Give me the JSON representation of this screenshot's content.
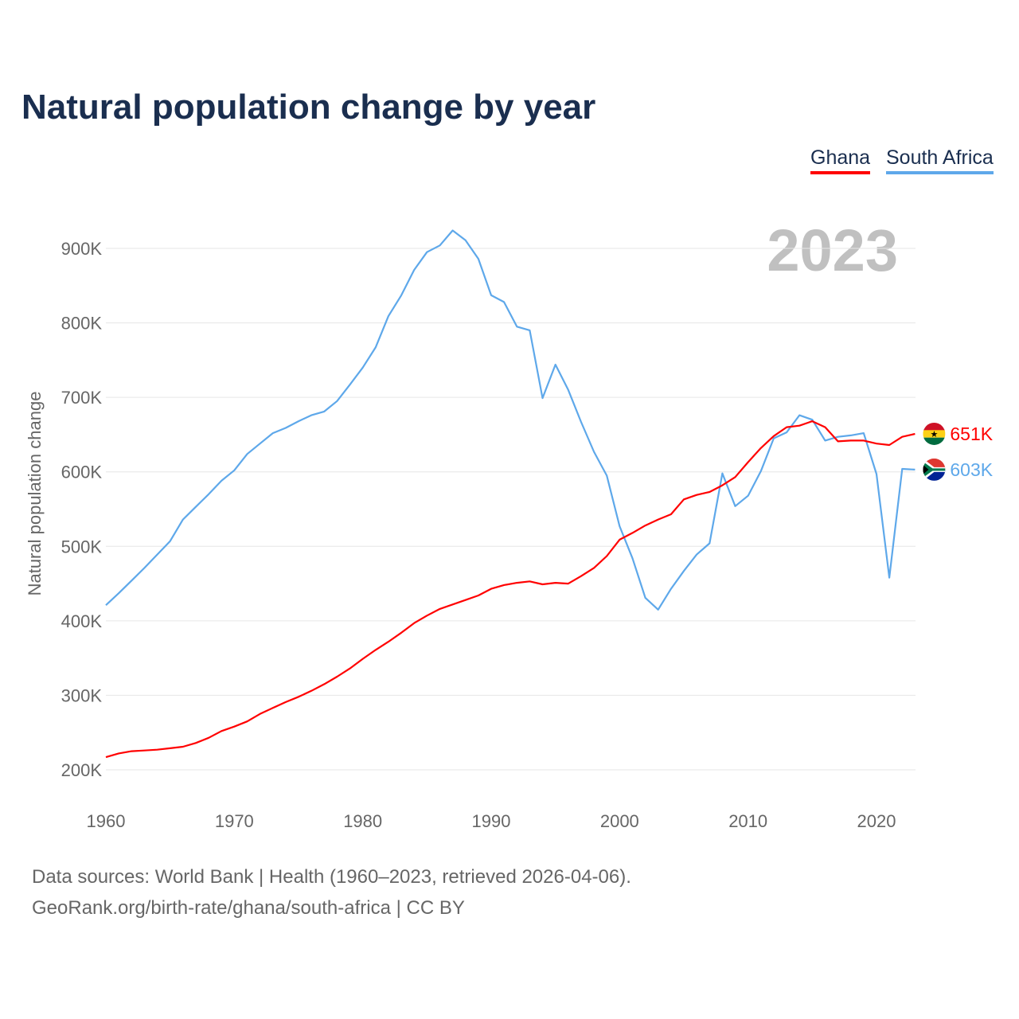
{
  "chart_data": {
    "type": "line",
    "title": "Natural population change by year",
    "ylabel": "Natural population change",
    "xlabel": "",
    "year_label": "2023",
    "xlim": [
      1960,
      2023
    ],
    "ylim": [
      200000,
      900000
    ],
    "x_ticks": [
      "1960",
      "1970",
      "1980",
      "1990",
      "2000",
      "2010",
      "2020"
    ],
    "y_ticks": [
      {
        "v": 200000,
        "label": "200K"
      },
      {
        "v": 300000,
        "label": "300K"
      },
      {
        "v": 400000,
        "label": "400K"
      },
      {
        "v": 500000,
        "label": "500K"
      },
      {
        "v": 600000,
        "label": "600K"
      },
      {
        "v": 700000,
        "label": "700K"
      },
      {
        "v": 800000,
        "label": "800K"
      },
      {
        "v": 900000,
        "label": "900K"
      }
    ],
    "grid": true,
    "legend_placement": "top-right",
    "start_year": 1960,
    "series": [
      {
        "name": "Ghana",
        "color": "#ff0000",
        "end_label": "651K",
        "values": [
          217,
          222,
          225,
          226,
          227,
          229,
          231,
          236,
          243,
          252,
          258,
          265,
          275,
          283,
          291,
          298,
          306,
          315,
          325,
          336,
          349,
          361,
          372,
          384,
          397,
          407,
          416,
          422,
          428,
          434,
          443,
          448,
          451,
          453,
          449,
          451,
          450,
          460,
          471,
          487,
          509,
          518,
          528,
          536,
          543,
          563,
          569,
          573,
          582,
          593,
          613,
          632,
          648,
          660,
          662,
          668,
          660,
          641,
          642,
          642,
          638,
          636,
          647,
          651
        ]
      },
      {
        "name": "South Africa",
        "color": "#5ea8ea",
        "end_label": "603K",
        "values": [
          421,
          437,
          454,
          471,
          489,
          507,
          536,
          553,
          570,
          588,
          602,
          624,
          638,
          652,
          659,
          668,
          676,
          681,
          695,
          717,
          740,
          767,
          809,
          837,
          871,
          895,
          904,
          924,
          911,
          886,
          837,
          828,
          795,
          790,
          699,
          744,
          710,
          667,
          627,
          595,
          527,
          484,
          431,
          415,
          443,
          467,
          489,
          504,
          598,
          554,
          568,
          601,
          645,
          653,
          676,
          670,
          642,
          647,
          649,
          652,
          597,
          458,
          604,
          603
        ]
      }
    ],
    "value_unit": 1000
  },
  "footer": {
    "sources": "Data sources: World Bank | Health (1960–2023, retrieved 2026-04-06).",
    "credit": "GeoRank.org/birth-rate/ghana/south-africa | CC BY"
  }
}
